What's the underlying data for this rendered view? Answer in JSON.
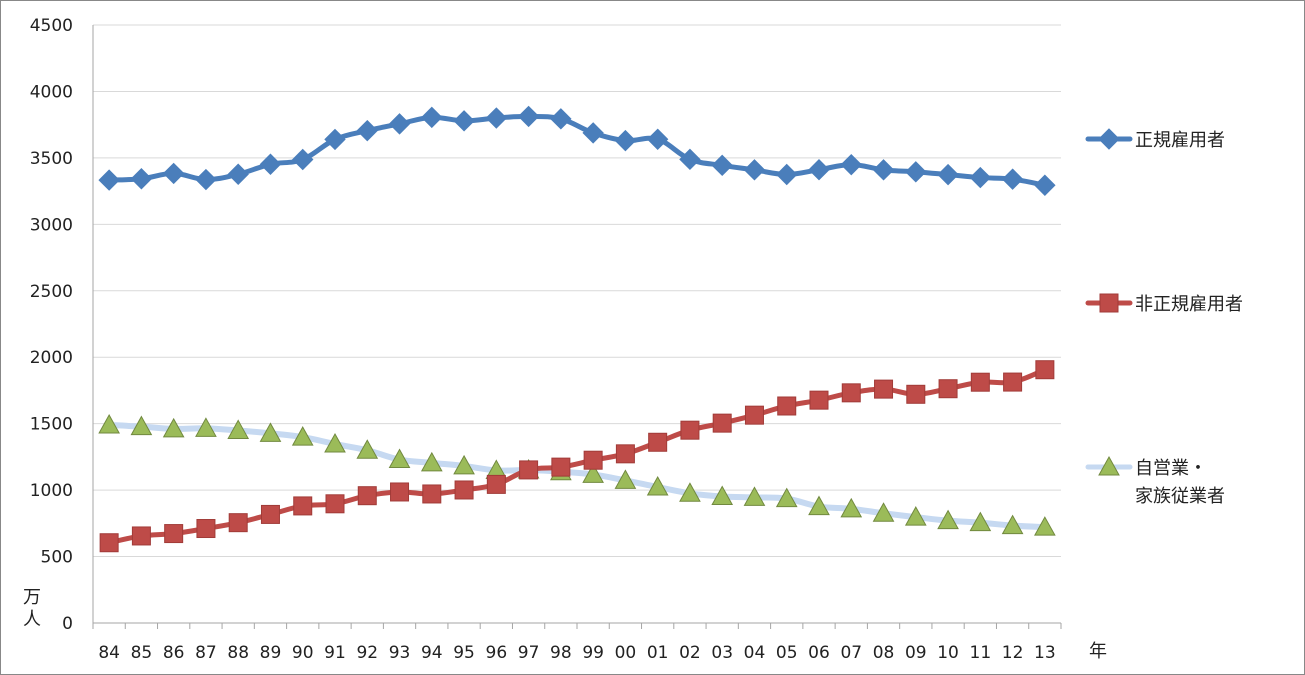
{
  "chart_data": {
    "type": "line",
    "categories": [
      "84",
      "85",
      "86",
      "87",
      "88",
      "89",
      "90",
      "91",
      "92",
      "93",
      "94",
      "95",
      "96",
      "97",
      "98",
      "99",
      "00",
      "01",
      "02",
      "03",
      "04",
      "05",
      "06",
      "07",
      "08",
      "09",
      "10",
      "11",
      "12",
      "13"
    ],
    "ylim": [
      0,
      4500
    ],
    "yticks": [
      0,
      500,
      1000,
      1500,
      2000,
      2500,
      3000,
      3500,
      4000,
      4500
    ],
    "ylabel": "万人",
    "ylabel_lines": [
      "万",
      "人"
    ],
    "xlabel": "年",
    "grid": "horizontal",
    "legend_position": "right",
    "series": [
      {
        "name": "正規雇用者",
        "name_lines": [
          "正規雇用者"
        ],
        "color": "#4a7ebb",
        "marker": "diamond",
        "values": [
          3333,
          3343,
          3383,
          3337,
          3377,
          3452,
          3488,
          3639,
          3705,
          3756,
          3805,
          3779,
          3800,
          3812,
          3794,
          3688,
          3630,
          3640,
          3489,
          3444,
          3410,
          3375,
          3411,
          3449,
          3410,
          3395,
          3374,
          3352,
          3340,
          3294
        ]
      },
      {
        "name": "非正規雇用者",
        "name_lines": [
          "非正規雇用者"
        ],
        "color": "#be4b48",
        "marker": "square",
        "values": [
          604,
          655,
          673,
          711,
          755,
          817,
          881,
          897,
          958,
          986,
          971,
          1001,
          1043,
          1152,
          1173,
          1225,
          1273,
          1360,
          1451,
          1504,
          1564,
          1633,
          1677,
          1732,
          1760,
          1721,
          1763,
          1812,
          1813,
          1906
        ]
      },
      {
        "name": "自営業・家族従業者",
        "name_lines": [
          "自営業・",
          "家族従業者"
        ],
        "color": "#c6d9f1",
        "marker": "triangle",
        "marker_fill": "#9bbb59",
        "marker_stroke": "#71893f",
        "values": [
          1490,
          1478,
          1461,
          1465,
          1449,
          1427,
          1399,
          1347,
          1300,
          1230,
          1205,
          1182,
          1148,
          1151,
          1138,
          1118,
          1073,
          1023,
          976,
          952,
          945,
          936,
          876,
          859,
          826,
          797,
          770,
          755,
          733,
          721
        ]
      }
    ]
  }
}
